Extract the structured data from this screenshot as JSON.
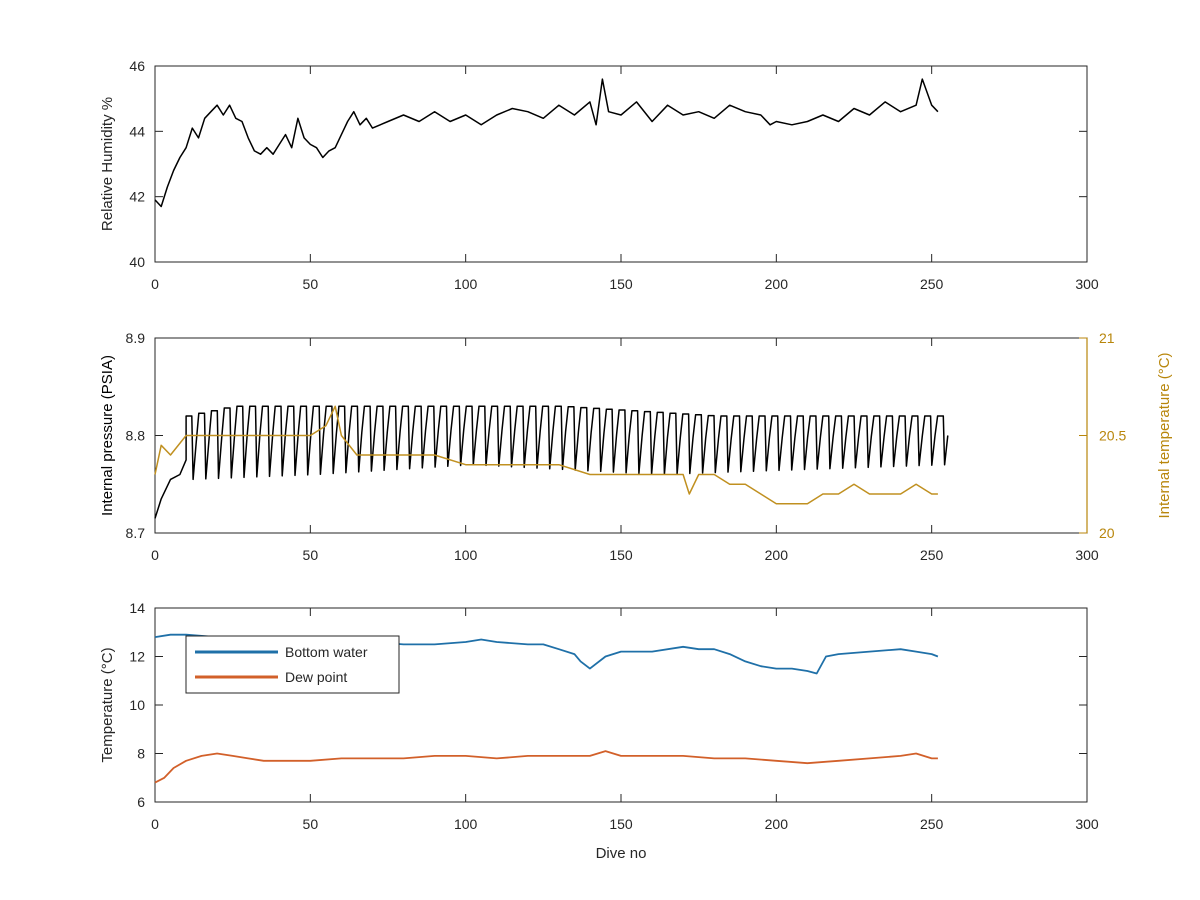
{
  "colors": {
    "humidity": "#000000",
    "pressure": "#000000",
    "internal_temperature": "#C09020",
    "bottom_water": "#1F70A8",
    "dew_point": "#D2602A",
    "axis": "#262626",
    "right_axis": "#B8860B"
  },
  "chart_data": [
    {
      "type": "line",
      "title": "",
      "xlabel": "",
      "ylabel": "Relative Humidity %",
      "xlim": [
        0,
        300
      ],
      "ylim": [
        40,
        46
      ],
      "xticks": [
        "0",
        "50",
        "100",
        "150",
        "200",
        "250",
        "300"
      ],
      "yticks": [
        "40",
        "42",
        "44",
        "46"
      ],
      "grid": false,
      "series": [
        {
          "color_key": "humidity",
          "x": [
            0,
            2,
            4,
            6,
            8,
            10,
            12,
            14,
            16,
            18,
            20,
            22,
            24,
            26,
            28,
            30,
            32,
            34,
            36,
            38,
            40,
            42,
            44,
            46,
            48,
            50,
            52,
            54,
            56,
            58,
            60,
            62,
            64,
            66,
            68,
            70,
            75,
            80,
            85,
            90,
            95,
            100,
            105,
            110,
            115,
            120,
            125,
            130,
            135,
            140,
            142,
            144,
            146,
            150,
            155,
            160,
            165,
            170,
            175,
            180,
            185,
            190,
            195,
            198,
            200,
            205,
            210,
            215,
            220,
            225,
            230,
            235,
            240,
            245,
            247,
            250,
            252
          ],
          "y": [
            41.9,
            41.7,
            42.3,
            42.8,
            43.2,
            43.5,
            44.1,
            43.8,
            44.4,
            44.6,
            44.8,
            44.5,
            44.8,
            44.4,
            44.3,
            43.8,
            43.4,
            43.3,
            43.5,
            43.3,
            43.6,
            43.9,
            43.5,
            44.4,
            43.8,
            43.6,
            43.5,
            43.2,
            43.4,
            43.5,
            43.9,
            44.3,
            44.6,
            44.2,
            44.4,
            44.1,
            44.3,
            44.5,
            44.3,
            44.6,
            44.3,
            44.5,
            44.2,
            44.5,
            44.7,
            44.6,
            44.4,
            44.8,
            44.5,
            44.9,
            44.2,
            45.6,
            44.6,
            44.5,
            44.9,
            44.3,
            44.8,
            44.5,
            44.6,
            44.4,
            44.8,
            44.6,
            44.5,
            44.2,
            44.3,
            44.2,
            44.3,
            44.5,
            44.3,
            44.7,
            44.5,
            44.9,
            44.6,
            44.8,
            45.6,
            44.8,
            44.6
          ]
        }
      ]
    },
    {
      "type": "line",
      "title": "",
      "xlabel": "",
      "ylabel": "Internal pressure (PSIA)",
      "ylabel_right": "Internal temperature (°C)",
      "xlim": [
        0,
        300
      ],
      "ylim": [
        8.7,
        8.9
      ],
      "ylim_right": [
        20,
        21
      ],
      "xticks": [
        "0",
        "50",
        "100",
        "150",
        "200",
        "250",
        "300"
      ],
      "yticks": [
        "8.7",
        "8.8",
        "8.9"
      ],
      "yticks_right": [
        "20",
        "20.5",
        "21"
      ],
      "grid": false,
      "series": [
        {
          "axis": "left",
          "color_key": "pressure",
          "x": [
            0,
            2,
            5,
            8,
            10,
            12,
            16,
            20,
            25,
            30,
            40,
            50,
            60,
            70,
            80,
            90,
            100,
            110,
            120,
            130,
            140,
            150,
            160,
            170,
            180,
            190,
            200,
            210,
            220,
            230,
            240,
            250,
            252
          ],
          "y": [
            8.715,
            8.735,
            8.755,
            8.76,
            8.775,
            8.795,
            8.8,
            8.805,
            8.81,
            8.815,
            8.815,
            8.812,
            8.813,
            8.813,
            8.81,
            8.81,
            8.808,
            8.807,
            8.805,
            8.805,
            8.803,
            8.8,
            8.8,
            8.8,
            8.797,
            8.795,
            8.787,
            8.79,
            8.793,
            8.793,
            8.793,
            8.795,
            8.795
          ],
          "oscillation": {
            "start": 10,
            "end": 252,
            "period": 4.1,
            "upper": [
              [
                10,
                8.82
              ],
              [
                25,
                8.83
              ],
              [
                130,
                8.83
              ],
              [
                180,
                8.82
              ],
              [
                252,
                8.82
              ]
            ],
            "lower": [
              [
                10,
                8.755
              ],
              [
                50,
                8.76
              ],
              [
                100,
                8.77
              ],
              [
                160,
                8.76
              ],
              [
                252,
                8.77
              ]
            ]
          }
        },
        {
          "axis": "right",
          "color_key": "internal_temperature",
          "x": [
            0,
            2,
            5,
            10,
            15,
            20,
            30,
            40,
            50,
            55,
            58,
            60,
            65,
            70,
            80,
            90,
            100,
            105,
            110,
            120,
            130,
            140,
            150,
            160,
            170,
            172,
            175,
            180,
            185,
            190,
            195,
            200,
            205,
            210,
            215,
            220,
            225,
            230,
            235,
            240,
            245,
            250,
            252
          ],
          "y": [
            20.3,
            20.45,
            20.4,
            20.5,
            20.5,
            20.5,
            20.5,
            20.5,
            20.5,
            20.55,
            20.65,
            20.5,
            20.4,
            20.4,
            20.4,
            20.4,
            20.35,
            20.35,
            20.35,
            20.35,
            20.35,
            20.3,
            20.3,
            20.3,
            20.3,
            20.2,
            20.3,
            20.3,
            20.25,
            20.25,
            20.2,
            20.15,
            20.15,
            20.15,
            20.2,
            20.2,
            20.25,
            20.2,
            20.2,
            20.2,
            20.25,
            20.2,
            20.2
          ]
        }
      ]
    },
    {
      "type": "line",
      "title": "",
      "xlabel": "Dive no",
      "ylabel": "Temperature (°C)",
      "xlim": [
        0,
        300
      ],
      "ylim": [
        6,
        14
      ],
      "xticks": [
        "0",
        "50",
        "100",
        "150",
        "200",
        "250",
        "300"
      ],
      "yticks": [
        "6",
        "8",
        "10",
        "12",
        "14"
      ],
      "grid": false,
      "legend": {
        "placement": "top-left",
        "labels": [
          "Bottom water",
          "Dew point"
        ]
      },
      "series": [
        {
          "name": "Bottom water",
          "color_key": "bottom_water",
          "x": [
            0,
            5,
            10,
            20,
            30,
            40,
            50,
            60,
            70,
            80,
            90,
            100,
            105,
            110,
            120,
            125,
            130,
            135,
            137,
            140,
            145,
            150,
            160,
            170,
            175,
            180,
            185,
            190,
            195,
            200,
            205,
            210,
            213,
            216,
            220,
            230,
            240,
            245,
            250,
            252
          ],
          "y": [
            12.8,
            12.9,
            12.9,
            12.8,
            12.8,
            12.7,
            12.7,
            12.6,
            12.6,
            12.5,
            12.5,
            12.6,
            12.7,
            12.6,
            12.5,
            12.5,
            12.3,
            12.1,
            11.8,
            11.5,
            12.0,
            12.2,
            12.2,
            12.4,
            12.3,
            12.3,
            12.1,
            11.8,
            11.6,
            11.5,
            11.5,
            11.4,
            11.3,
            12.0,
            12.1,
            12.2,
            12.3,
            12.2,
            12.1,
            12.0
          ]
        },
        {
          "name": "Dew point",
          "color_key": "dew_point",
          "x": [
            0,
            3,
            6,
            10,
            15,
            20,
            25,
            30,
            35,
            40,
            50,
            60,
            70,
            80,
            90,
            100,
            110,
            120,
            130,
            140,
            145,
            150,
            160,
            170,
            180,
            190,
            200,
            210,
            220,
            230,
            240,
            245,
            250,
            252
          ],
          "y": [
            6.8,
            7.0,
            7.4,
            7.7,
            7.9,
            8.0,
            7.9,
            7.8,
            7.7,
            7.7,
            7.7,
            7.8,
            7.8,
            7.8,
            7.9,
            7.9,
            7.8,
            7.9,
            7.9,
            7.9,
            8.1,
            7.9,
            7.9,
            7.9,
            7.8,
            7.8,
            7.7,
            7.6,
            7.7,
            7.8,
            7.9,
            8.0,
            7.8,
            7.8
          ]
        }
      ]
    }
  ]
}
